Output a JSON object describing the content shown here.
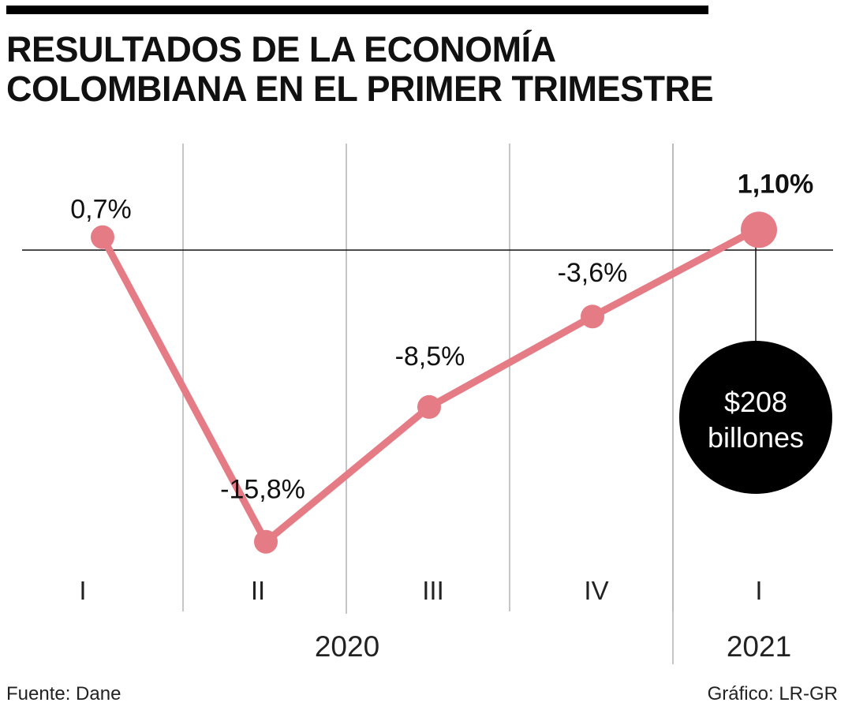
{
  "header": {
    "title_line1": "RESULTADOS DE LA ECONOMÍA",
    "title_line2": "COLOMBIANA EN EL PRIMER TRIMESTRE"
  },
  "footer": {
    "source": "Fuente: Dane",
    "credit": "Gráfico: LR-GR"
  },
  "callout": {
    "line1": "$208",
    "line2": "billones"
  },
  "colors": {
    "line": "#e57b85",
    "callout_bg": "#000000",
    "grid": "#b3b3b3"
  },
  "chart_data": {
    "type": "line",
    "categories": [
      "I",
      "II",
      "III",
      "IV",
      "I"
    ],
    "years": [
      {
        "label": "2020",
        "quarters": [
          0,
          1,
          2,
          3
        ]
      },
      {
        "label": "2021",
        "quarters": [
          4
        ]
      }
    ],
    "values": [
      0.7,
      -15.8,
      -8.5,
      -3.6,
      1.1
    ],
    "value_labels": [
      "0,7%",
      "-15,8%",
      "-8,5%",
      "-3,6%",
      "1,10%"
    ],
    "highlight_index": 4,
    "baseline": 0,
    "grid": "vertical"
  }
}
